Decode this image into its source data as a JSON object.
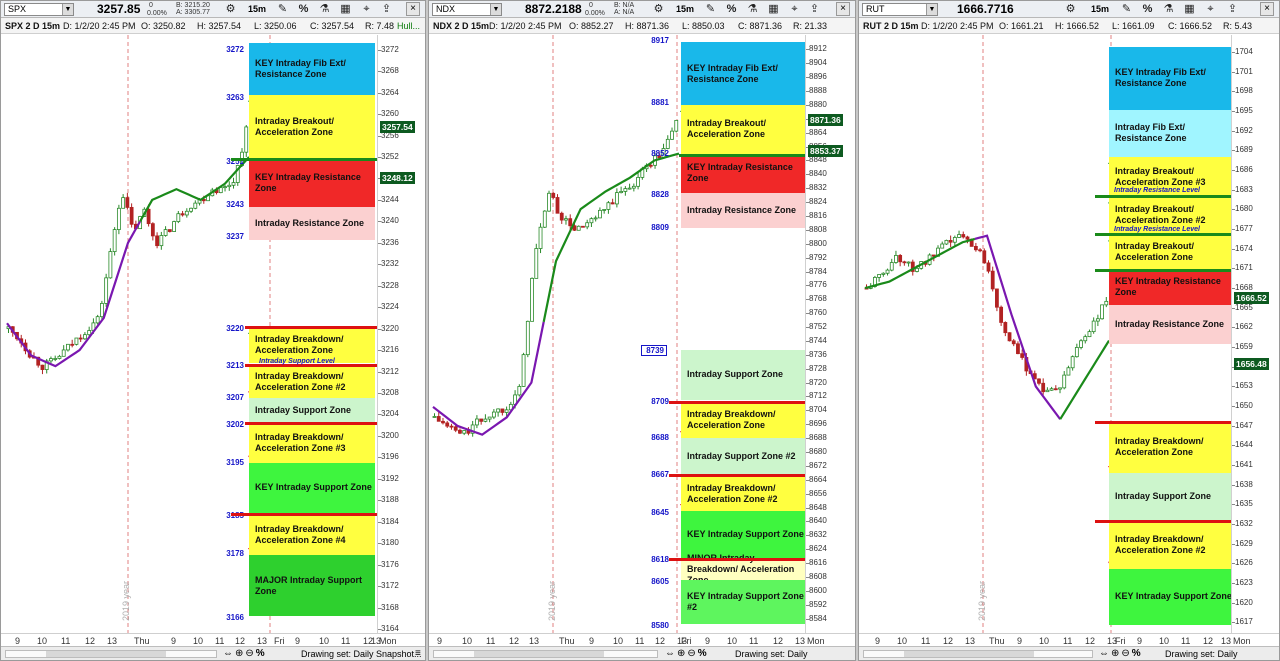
{
  "common": {
    "interval": "15m",
    "drawing_set": "Drawing set: Daily Snapshot...",
    "year_label": "2019 year",
    "percent": "%"
  },
  "panels": [
    {
      "id": "spx",
      "symbol": "SPX",
      "last": "3257.85",
      "last_color": "#111111",
      "bid": "B: 3215.20",
      "ask": "A: 3305.77",
      "change": "0",
      "change_pct": "0.00%",
      "info": [
        "SPX 2 D 15m",
        "D: 1/2/20 2:45 PM",
        "O: 3250.82",
        "H: 3257.54",
        "L: 3250.06",
        "C: 3257.54",
        "R: 7.48",
        "Hull..."
      ],
      "axis": {
        "min": 3164,
        "max": 3274,
        "ticks": [
          3272,
          3268,
          3264,
          3260,
          3256,
          3252,
          3248,
          3244,
          3240,
          3236,
          3232,
          3228,
          3224,
          3220,
          3216,
          3212,
          3208,
          3204,
          3200,
          3196,
          3192,
          3188,
          3184,
          3180,
          3176,
          3172,
          3168,
          3164
        ]
      },
      "badges": [
        {
          "text": "3257.54",
          "value": 3257.54
        },
        {
          "text": "3248.12",
          "value": 3248.12
        }
      ],
      "zones": [
        {
          "label": "KEY Intraday Fib Ext/ Resistance Zone",
          "hi": 3273.2,
          "lo": 3263.6,
          "color": "#19b8ea"
        },
        {
          "label": "Intraday Breakout/ Acceleration Zone",
          "hi": 3263.6,
          "lo": 3251.6,
          "color": "#ffff40"
        },
        {
          "label": "KEY Intraday Resistance Zone",
          "hi": 3251.6,
          "lo": 3242.6,
          "color": "#f02828"
        },
        {
          "label": "Intraday Resistance Zone",
          "hi": 3242.6,
          "lo": 3236.6,
          "color": "#fbd0d0"
        },
        {
          "label": "Intraday Breakdown/ Acceleration Zone",
          "hi": 3220.3,
          "lo": 3213.6,
          "color": "#ffff40"
        },
        {
          "label": "Intraday Breakdown/ Acceleration Zone #2",
          "hi": 3213.0,
          "lo": 3207.0,
          "color": "#ffff40"
        },
        {
          "label": "Intraday Support Zone",
          "hi": 3207.0,
          "lo": 3202.6,
          "color": "#ccf5cc"
        },
        {
          "label": "Intraday Breakdown/ Acceleration Zone #3",
          "hi": 3202.4,
          "lo": 3195.0,
          "color": "#ffff40"
        },
        {
          "label": "KEY Intraday Support Zone",
          "hi": 3195.0,
          "lo": 3185.6,
          "color": "#3ef53e"
        },
        {
          "label": "Intraday Breakdown/ Acceleration Zone #4",
          "hi": 3185.2,
          "lo": 3177.8,
          "color": "#ffff40"
        },
        {
          "label": "MAJOR Intraday Support Zone",
          "hi": 3177.8,
          "lo": 3166.4,
          "color": "#2ed02e"
        }
      ],
      "levels": [
        "3272",
        "3263",
        "3251",
        "3243",
        "3237",
        "3220",
        "3213",
        "3207",
        "3202",
        "3195",
        "3185",
        "3178",
        "3166"
      ],
      "sublabels": [
        "Intraday Support Level"
      ],
      "xlabels": [
        "9",
        "10",
        "11",
        "12",
        "13",
        "Thu",
        "9",
        "10",
        "11",
        "12",
        "13",
        "Fri",
        "9",
        "10",
        "11",
        "12",
        "13",
        "Mon"
      ]
    },
    {
      "id": "ndx",
      "symbol": "NDX",
      "last": "8872.2188",
      "last_color": "#111111",
      "bid": "B: N/A",
      "ask": "A: N/A",
      "change": "0",
      "change_pct": "0.00%",
      "info": [
        "NDX 2 D 15m",
        "D: 1/2/20 2:45 PM",
        "O: 8852.27",
        "H: 8871.36",
        "L: 8850.03",
        "C: 8871.36",
        "R: 21.33"
      ],
      "axis": {
        "min": 8578,
        "max": 8918,
        "ticks": [
          8912,
          8904,
          8896,
          8888,
          8880,
          8872,
          8864,
          8856,
          8848,
          8840,
          8832,
          8824,
          8816,
          8808,
          8800,
          8792,
          8784,
          8776,
          8768,
          8760,
          8752,
          8744,
          8736,
          8728,
          8720,
          8712,
          8704,
          8696,
          8688,
          8680,
          8672,
          8664,
          8656,
          8648,
          8640,
          8632,
          8624,
          8616,
          8608,
          8600,
          8592,
          8584
        ]
      },
      "badges": [
        {
          "text": "8871.36",
          "value": 8871.36
        },
        {
          "text": "8853.37",
          "value": 8853.37
        }
      ],
      "zones": [
        {
          "label": "KEY Intraday Fib Ext/ Resistance Zone",
          "hi": 8916,
          "lo": 8880,
          "color": "#19b8ea"
        },
        {
          "label": "Intraday Breakout/ Acceleration Zone",
          "hi": 8880,
          "lo": 8852,
          "color": "#ffff40"
        },
        {
          "label": "KEY Intraday Resistance Zone",
          "hi": 8852,
          "lo": 8829,
          "color": "#f02828"
        },
        {
          "label": "Intraday Resistance Zone",
          "hi": 8829,
          "lo": 8809,
          "color": "#fbd0d0"
        },
        {
          "label": "Intraday Support Zone",
          "hi": 8739,
          "lo": 8710,
          "color": "#ccf5cc"
        },
        {
          "label": "Intraday Breakdown/ Acceleration Zone",
          "hi": 8709,
          "lo": 8688,
          "color": "#ffff40"
        },
        {
          "label": "Intraday Support Zone #2",
          "hi": 8688,
          "lo": 8667,
          "color": "#ccf5cc"
        },
        {
          "label": "Intraday Breakdown/ Acceleration Zone #2",
          "hi": 8666,
          "lo": 8646,
          "color": "#ffff40"
        },
        {
          "label": "KEY Intraday Support Zone",
          "hi": 8646,
          "lo": 8619,
          "color": "#3ef53e"
        },
        {
          "label": "MINOR Intraday Breakdown/ Acceleration Zone",
          "hi": 8618,
          "lo": 8606,
          "color": "#ffffc0"
        },
        {
          "label": "KEY Intraday Support Zone #2",
          "hi": 8606,
          "lo": 8581,
          "color": "#5ef55e"
        }
      ],
      "levels": [
        "8917",
        "8881",
        "8852",
        "8828",
        "8809",
        "8739",
        "8709",
        "8688",
        "8667",
        "8645",
        "8618",
        "8605",
        "8580"
      ],
      "sublabels": [],
      "xlabels": [
        "9",
        "10",
        "11",
        "12",
        "13",
        "Thu",
        "9",
        "10",
        "11",
        "12",
        "13",
        "Fri",
        "9",
        "10",
        "11",
        "12",
        "13",
        "Mon"
      ]
    },
    {
      "id": "rut",
      "symbol": "RUT",
      "last": "1666.7716",
      "last_color": "#111111",
      "bid": "",
      "ask": "",
      "change": "",
      "change_pct": "",
      "info": [
        "RUT 2 D 15m",
        "D: 1/2/20 2:45 PM",
        "O: 1661.21",
        "H: 1666.52",
        "L: 1661.09",
        "C: 1666.52",
        "R: 5.43"
      ],
      "axis": {
        "min": 1616,
        "max": 1706,
        "ticks": [
          1704,
          1701,
          1698,
          1695,
          1692,
          1689,
          1686,
          1683,
          1680,
          1677,
          1674,
          1671,
          1668,
          1665,
          1662,
          1659,
          1656,
          1653,
          1650,
          1647,
          1644,
          1641,
          1638,
          1635,
          1632,
          1629,
          1626,
          1623,
          1620,
          1617
        ]
      },
      "badges": [
        {
          "text": "1666.52",
          "value": 1666.52
        },
        {
          "text": "1656.48",
          "value": 1656.48
        }
      ],
      "zones": [
        {
          "label": "KEY Intraday Fib Ext/ Resistance Zone",
          "hi": 1704.8,
          "lo": 1695.2,
          "color": "#19b8ea"
        },
        {
          "label": "Intraday Fib Ext/ Resistance Zone",
          "hi": 1695.2,
          "lo": 1688.0,
          "color": "#a0f5ff"
        },
        {
          "label": "Intraday Breakout/ Acceleration Zone #3",
          "hi": 1688.0,
          "lo": 1682.0,
          "color": "#ffff40"
        },
        {
          "label": "Intraday Breakout/ Acceleration Zone #2",
          "hi": 1682.0,
          "lo": 1676.2,
          "color": "#ffff40"
        },
        {
          "label": "Intraday Breakout/ Acceleration Zone",
          "hi": 1676.2,
          "lo": 1670.8,
          "color": "#ffff40"
        },
        {
          "label": "KEY Intraday Resistance Zone",
          "hi": 1670.8,
          "lo": 1665.4,
          "color": "#f02828"
        },
        {
          "label": "Intraday Resistance Zone",
          "hi": 1665.4,
          "lo": 1659.4,
          "color": "#fbd0d0"
        },
        {
          "label": "Intraday Breakdown/ Acceleration Zone",
          "hi": 1647.6,
          "lo": 1639.8,
          "color": "#ffff40"
        },
        {
          "label": "Intraday Support Zone",
          "hi": 1639.8,
          "lo": 1632.6,
          "color": "#ccf5cc"
        },
        {
          "label": "Intraday Breakdown/ Acceleration Zone #2",
          "hi": 1632.4,
          "lo": 1625.2,
          "color": "#ffff40"
        },
        {
          "label": "KEY Intraday Support Zone",
          "hi": 1625.2,
          "lo": 1616.6,
          "color": "#3ef53e"
        }
      ],
      "levels": [],
      "sublabels": [
        "Intraday Resistance Level",
        "Intraday Resistance Level"
      ],
      "xlabels": [
        "9",
        "10",
        "11",
        "12",
        "13",
        "Thu",
        "9",
        "10",
        "11",
        "12",
        "13",
        "Fri",
        "9",
        "10",
        "11",
        "12",
        "13",
        "Mon"
      ]
    }
  ]
}
